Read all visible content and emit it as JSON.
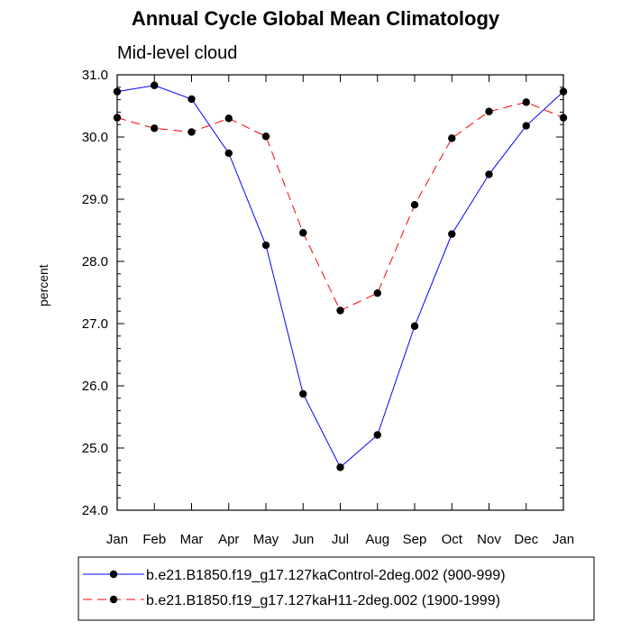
{
  "chart_data": {
    "type": "line",
    "title": "Annual Cycle Global Mean Climatology",
    "subtitle": "Mid-level cloud",
    "xlabel": "",
    "ylabel": "percent",
    "categories": [
      "Jan",
      "Feb",
      "Mar",
      "Apr",
      "May",
      "Jun",
      "Jul",
      "Aug",
      "Sep",
      "Oct",
      "Nov",
      "Dec",
      "Jan"
    ],
    "ylim": [
      24.0,
      31.0
    ],
    "yticks": [
      "24.0",
      "25.0",
      "26.0",
      "27.0",
      "28.0",
      "29.0",
      "30.0",
      "31.0"
    ],
    "series": [
      {
        "name": "b.e21.B1850.f19_g17.127kaControl-2deg.002 (900-999)",
        "color": "#0000ff",
        "dash": "solid",
        "values": [
          30.73,
          30.83,
          30.61,
          29.74,
          28.26,
          25.87,
          24.69,
          25.21,
          26.96,
          28.44,
          29.4,
          30.18,
          30.73
        ]
      },
      {
        "name": "b.e21.B1850.f19_g17.127kaH11-2deg.002 (1900-1999)",
        "color": "#ff0000",
        "dash": "dashed",
        "values": [
          30.31,
          30.14,
          30.08,
          30.3,
          30.01,
          28.46,
          27.21,
          27.49,
          28.91,
          29.98,
          30.41,
          30.56,
          30.31
        ]
      }
    ],
    "legend_position": "bottom"
  }
}
